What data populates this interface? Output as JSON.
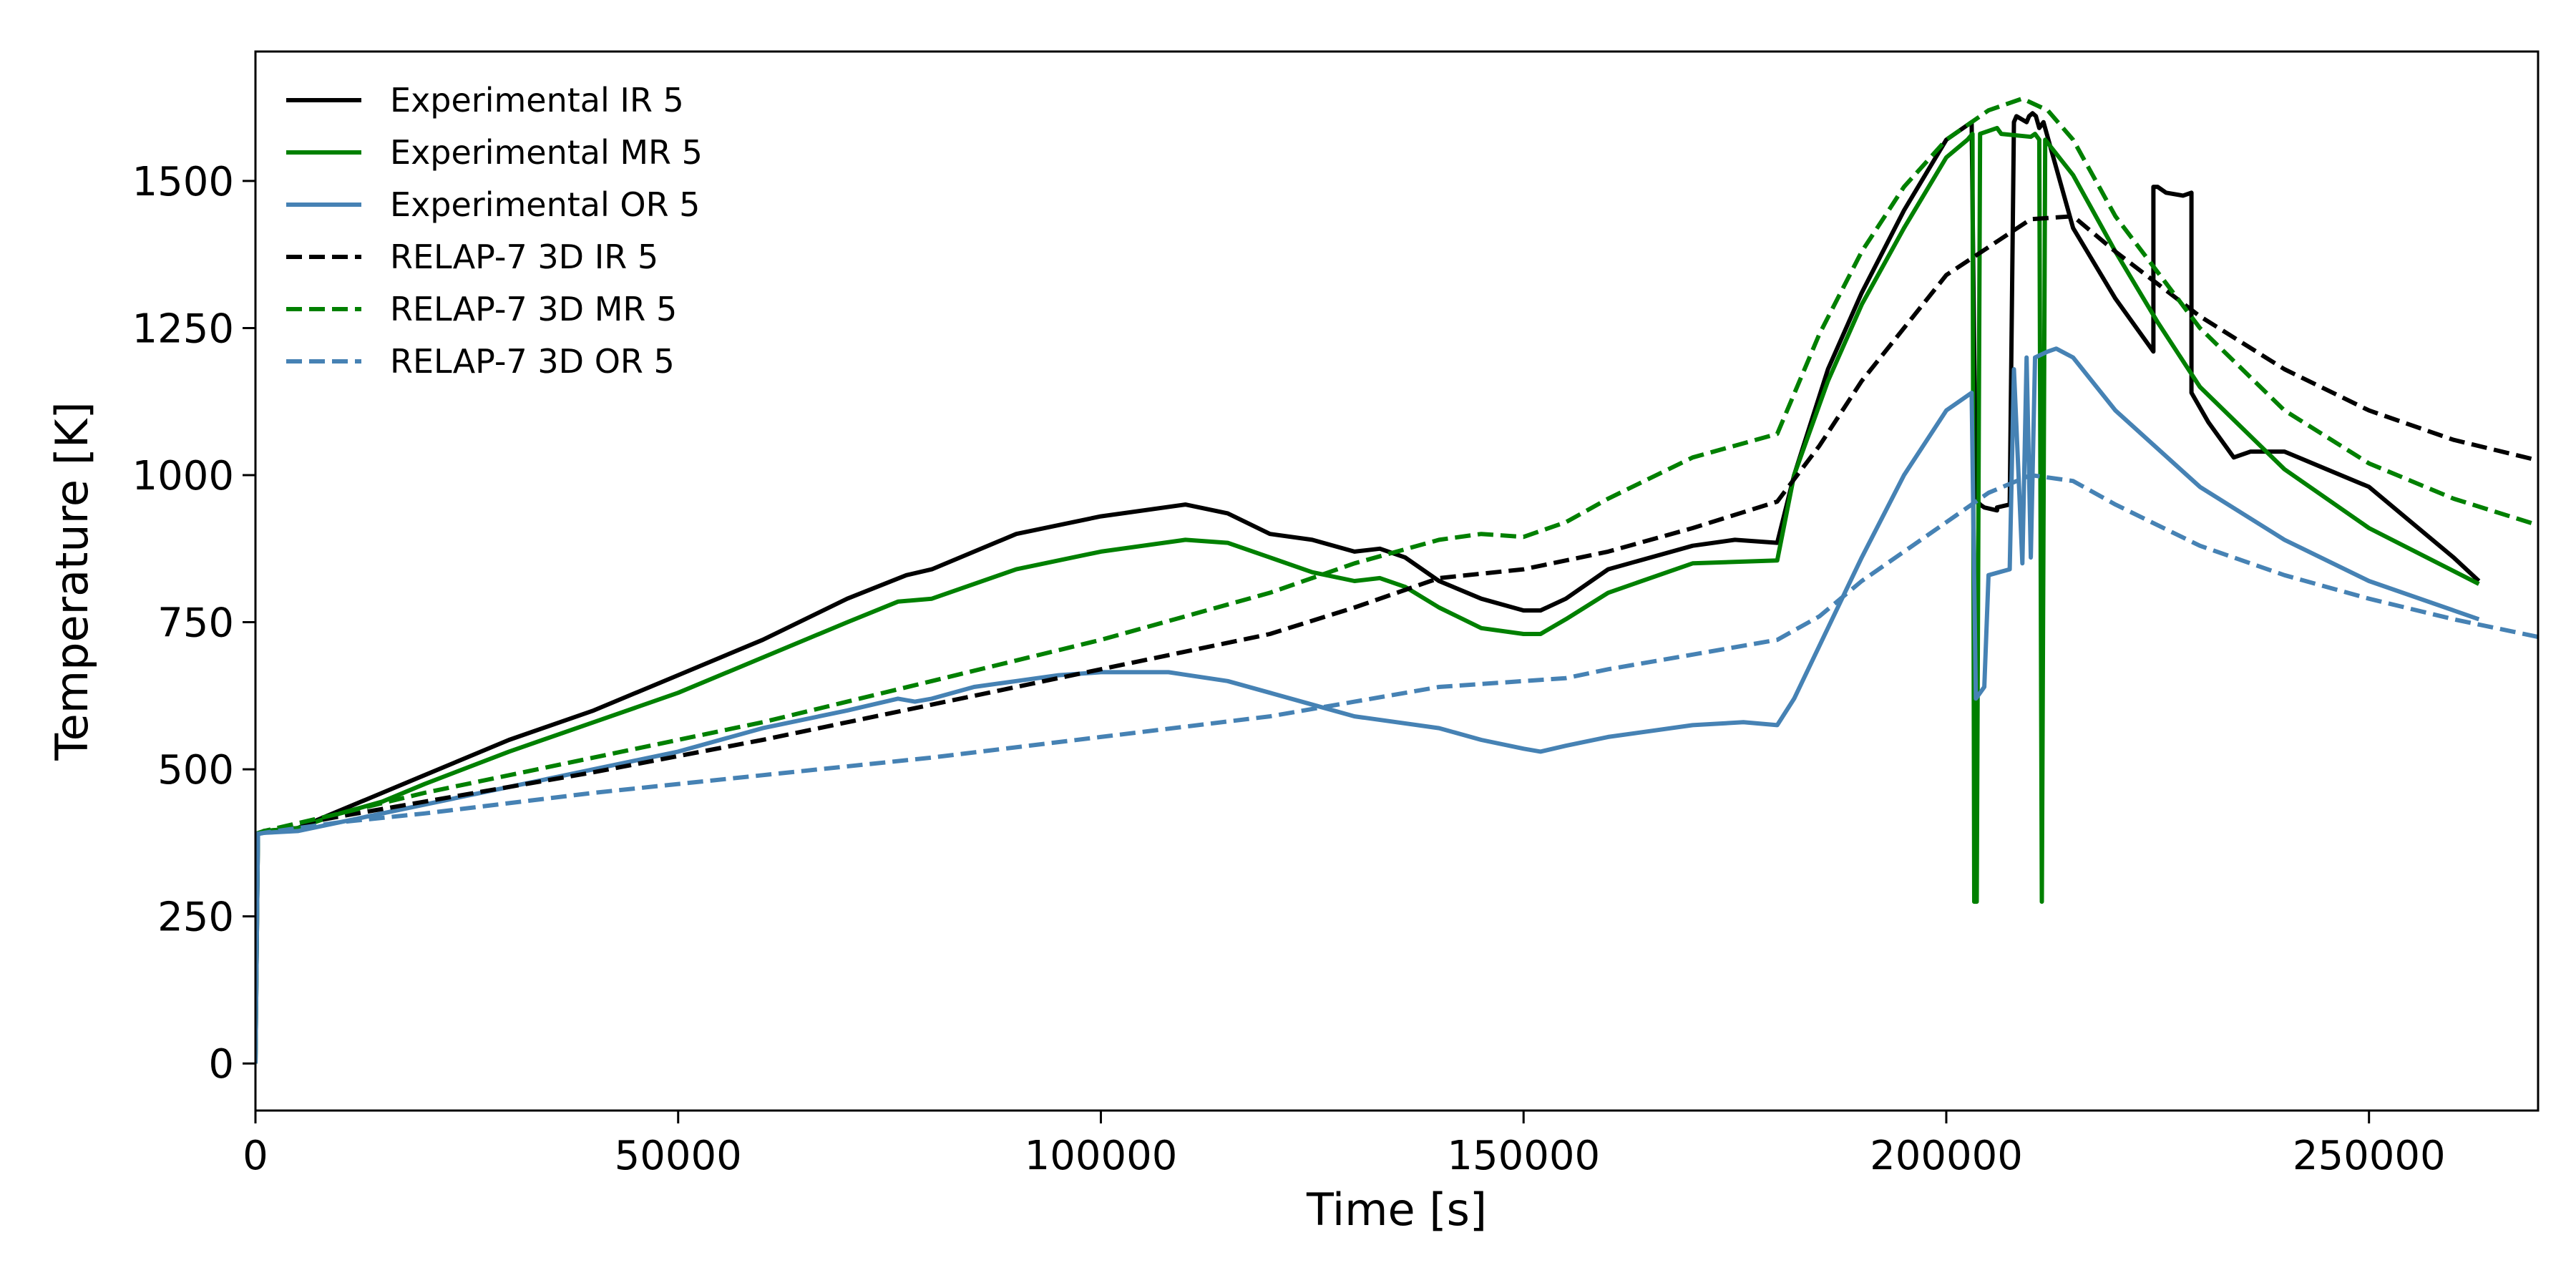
{
  "chart_data": {
    "type": "line",
    "title": "",
    "xlabel": "Time [s]",
    "ylabel": "Temperature [K]",
    "xlim": [
      0,
      270000
    ],
    "ylim": [
      -80,
      1720
    ],
    "xticks": [
      0,
      50000,
      100000,
      150000,
      200000,
      250000
    ],
    "yticks": [
      0,
      250,
      500,
      750,
      1000,
      1250,
      1500
    ],
    "grid": false,
    "legend_position": "top-left",
    "series": [
      {
        "name": "Experimental IR 5",
        "color": "#000000",
        "dash": "solid",
        "x": [
          0,
          300,
          1000,
          5000,
          10000,
          15000,
          20000,
          30000,
          40000,
          50000,
          60000,
          70000,
          77000,
          80000,
          90000,
          100000,
          110000,
          115000,
          120000,
          125000,
          130000,
          133000,
          136000,
          140000,
          145000,
          150000,
          152000,
          155000,
          160000,
          170000,
          175000,
          180000,
          182000,
          186000,
          190000,
          195000,
          200000,
          202500,
          203000,
          203500,
          204000,
          204500,
          206000,
          206000,
          207500,
          208000,
          208300,
          209500,
          209800,
          210200,
          210600,
          211000,
          211500,
          215000,
          220000,
          224500,
          224500,
          225000,
          226000,
          228000,
          229000,
          229000,
          231000,
          233000,
          234000,
          236000,
          240000,
          245000,
          250000,
          255000,
          260000,
          263000
        ],
        "y": [
          0,
          390,
          395,
          400,
          430,
          460,
          490,
          550,
          600,
          660,
          720,
          790,
          830,
          840,
          900,
          930,
          950,
          935,
          900,
          890,
          870,
          875,
          860,
          820,
          790,
          770,
          770,
          790,
          840,
          880,
          890,
          885,
          1000,
          1180,
          1310,
          1450,
          1570,
          1595,
          1600,
          960,
          950,
          945,
          940,
          945,
          950,
          1600,
          1610,
          1600,
          1610,
          1615,
          1610,
          1590,
          1600,
          1420,
          1300,
          1210,
          1490,
          1490,
          1480,
          1475,
          1480,
          1140,
          1090,
          1050,
          1030,
          1040,
          1040,
          1010,
          980,
          920,
          860,
          820
        ]
      },
      {
        "name": "Experimental MR 5",
        "color": "#008000",
        "dash": "solid",
        "x": [
          0,
          300,
          1000,
          5000,
          10000,
          15000,
          20000,
          30000,
          40000,
          50000,
          60000,
          70000,
          76000,
          80000,
          90000,
          100000,
          110000,
          115000,
          120000,
          125000,
          130000,
          133000,
          136000,
          140000,
          145000,
          150000,
          152000,
          155000,
          160000,
          170000,
          180000,
          182000,
          186000,
          190000,
          195000,
          200000,
          202500,
          203100,
          203300,
          203600,
          204000,
          206000,
          206500,
          210000,
          210500,
          211000,
          211300,
          211700,
          215000,
          220000,
          225000,
          230000,
          240000,
          250000,
          263000
        ],
        "y": [
          0,
          390,
          395,
          400,
          425,
          445,
          475,
          530,
          580,
          630,
          690,
          750,
          785,
          790,
          840,
          870,
          890,
          885,
          860,
          835,
          820,
          825,
          810,
          775,
          740,
          730,
          730,
          755,
          800,
          850,
          855,
          1000,
          1160,
          1290,
          1420,
          1540,
          1570,
          1580,
          275,
          275,
          1580,
          1590,
          1580,
          1575,
          1580,
          1570,
          275,
          1570,
          1510,
          1380,
          1260,
          1150,
          1010,
          910,
          815
        ]
      },
      {
        "name": "Experimental OR 5",
        "color": "#4682b4",
        "dash": "solid",
        "x": [
          0,
          300,
          1000,
          5000,
          10000,
          20000,
          30000,
          40000,
          50000,
          60000,
          70000,
          76000,
          78000,
          80000,
          85000,
          90000,
          95000,
          100000,
          108000,
          115000,
          120000,
          125000,
          130000,
          135000,
          140000,
          145000,
          150000,
          152000,
          155000,
          160000,
          170000,
          176000,
          180000,
          182000,
          185000,
          190000,
          195000,
          200000,
          203000,
          203500,
          204000,
          204500,
          205000,
          207500,
          208000,
          209000,
          209500,
          210000,
          210500,
          212000,
          213000,
          215000,
          220000,
          230000,
          240000,
          250000,
          263000
        ],
        "y": [
          0,
          390,
          392,
          395,
          410,
          440,
          470,
          500,
          530,
          570,
          600,
          620,
          615,
          620,
          640,
          650,
          660,
          665,
          665,
          650,
          630,
          610,
          590,
          580,
          570,
          550,
          535,
          530,
          540,
          555,
          575,
          580,
          575,
          620,
          710,
          860,
          1000,
          1110,
          1140,
          620,
          630,
          640,
          830,
          840,
          1180,
          850,
          1200,
          860,
          1200,
          1210,
          1215,
          1200,
          1110,
          980,
          890,
          820,
          755
        ]
      },
      {
        "name": "RELAP-7 3D IR 5",
        "color": "#000000",
        "dash": "dashed",
        "x": [
          0,
          1000,
          10000,
          20000,
          40000,
          60000,
          80000,
          100000,
          120000,
          130000,
          140000,
          150000,
          160000,
          170000,
          180000,
          185000,
          190000,
          200000,
          210000,
          215000,
          220000,
          230000,
          240000,
          250000,
          260000,
          270000
        ],
        "y": [
          390,
          395,
          420,
          445,
          495,
          550,
          610,
          670,
          730,
          775,
          825,
          840,
          870,
          910,
          955,
          1050,
          1160,
          1340,
          1435,
          1440,
          1380,
          1270,
          1180,
          1110,
          1060,
          1025
        ]
      },
      {
        "name": "RELAP-7 3D MR 5",
        "color": "#008000",
        "dash": "dashed",
        "x": [
          0,
          1000,
          10000,
          20000,
          40000,
          60000,
          80000,
          100000,
          120000,
          130000,
          140000,
          145000,
          150000,
          155000,
          160000,
          170000,
          180000,
          185000,
          190000,
          195000,
          200000,
          205000,
          209000,
          212000,
          215000,
          220000,
          230000,
          240000,
          250000,
          260000,
          270000
        ],
        "y": [
          390,
          395,
          425,
          460,
          520,
          580,
          650,
          720,
          800,
          850,
          890,
          900,
          895,
          920,
          960,
          1030,
          1070,
          1240,
          1380,
          1490,
          1570,
          1620,
          1640,
          1620,
          1570,
          1440,
          1250,
          1110,
          1020,
          960,
          915
        ]
      },
      {
        "name": "RELAP-7 3D OR 5",
        "color": "#4682b4",
        "dash": "dashed",
        "x": [
          0,
          1000,
          10000,
          20000,
          40000,
          60000,
          80000,
          100000,
          120000,
          130000,
          140000,
          150000,
          155000,
          160000,
          170000,
          180000,
          185000,
          190000,
          200000,
          205000,
          210000,
          215000,
          220000,
          230000,
          240000,
          250000,
          260000,
          270000
        ],
        "y": [
          390,
          392,
          410,
          425,
          460,
          490,
          520,
          555,
          590,
          615,
          640,
          650,
          655,
          670,
          695,
          720,
          760,
          820,
          920,
          970,
          1000,
          990,
          950,
          880,
          830,
          790,
          755,
          725
        ]
      }
    ]
  }
}
